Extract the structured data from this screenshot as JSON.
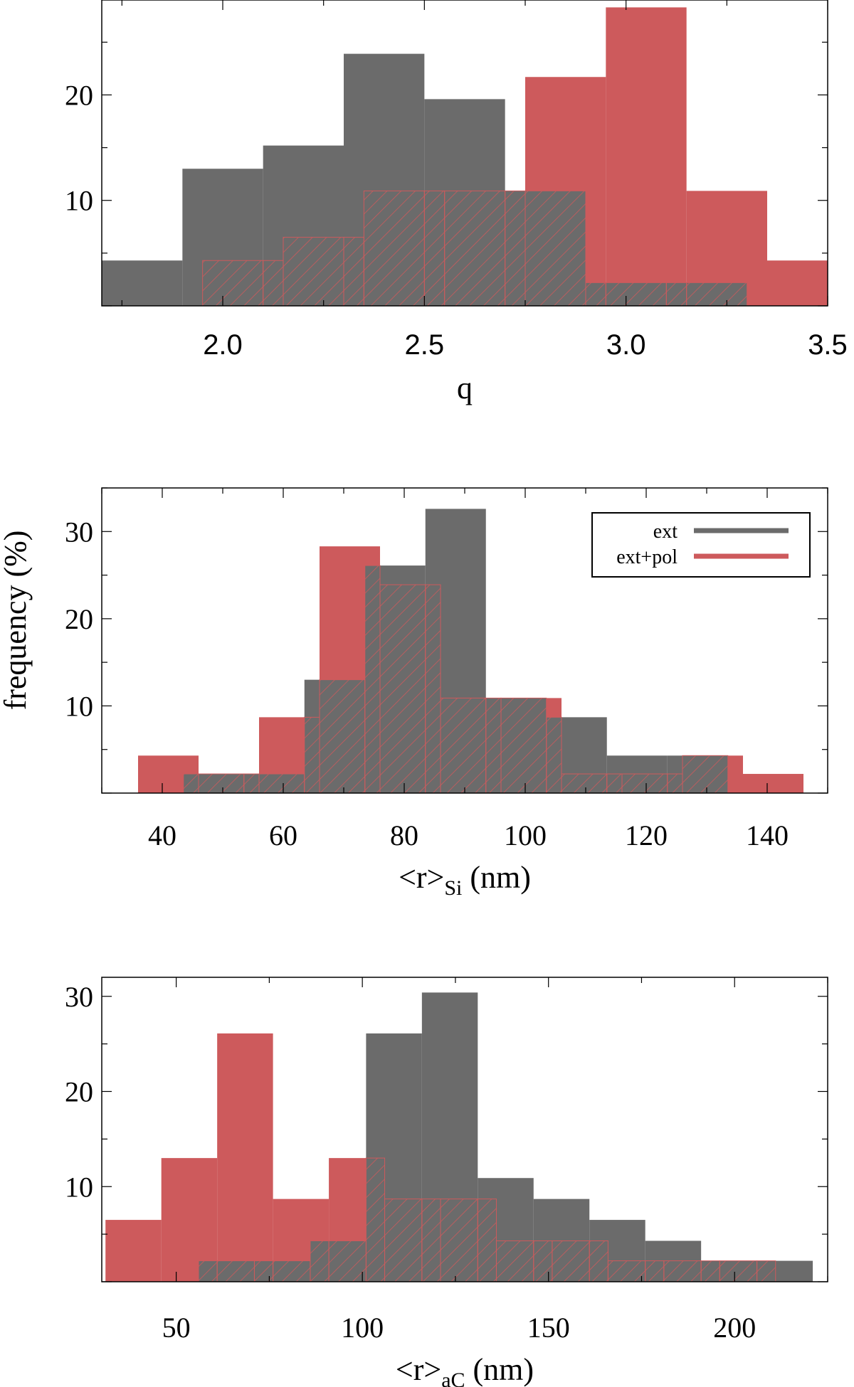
{
  "colors": {
    "ext": "#6b6b6b",
    "ext_pol": "#cd5a5c",
    "hatch": "#cd5a5c",
    "frame": "#000000"
  },
  "ylabel": "frequency (%)",
  "legend": {
    "ext": "ext",
    "ext_pol": "ext+pol"
  },
  "chart_data": [
    {
      "type": "bar",
      "title": "",
      "xlabel": "q",
      "xlim": [
        1.7,
        3.5
      ],
      "ylim": [
        0,
        29
      ],
      "xticks": [
        2.0,
        2.5,
        3.0,
        3.5
      ],
      "xtick_labels": [
        "2.0",
        "2.5",
        "3.0",
        "3.5"
      ],
      "yticks": [
        10,
        20
      ],
      "ytick_labels": [
        "10",
        "20"
      ],
      "series": [
        {
          "name": "ext",
          "edges": [
            1.7,
            1.9,
            2.1,
            2.3,
            2.5,
            2.7,
            2.9,
            3.1,
            3.3
          ],
          "values": [
            4.3,
            13.0,
            15.2,
            23.9,
            19.6,
            10.9,
            2.2,
            2.2
          ]
        },
        {
          "name": "ext+pol",
          "edges": [
            1.95,
            2.15,
            2.35,
            2.55,
            2.75,
            2.95,
            3.15,
            3.35,
            3.55
          ],
          "values": [
            4.3,
            6.5,
            10.9,
            10.9,
            21.7,
            28.3,
            10.9,
            4.3
          ]
        }
      ]
    },
    {
      "type": "bar",
      "title": "",
      "xlabel": "<r>",
      "xlabel_sub": "Si",
      "xlabel_unit": "(nm)",
      "xlim": [
        30,
        150
      ],
      "ylim": [
        0,
        35
      ],
      "xticks": [
        40,
        60,
        80,
        100,
        120,
        140
      ],
      "xtick_labels": [
        "40",
        "60",
        "80",
        "100",
        "120",
        "140"
      ],
      "yticks": [
        10,
        20,
        30
      ],
      "ytick_labels": [
        "10",
        "20",
        "30"
      ],
      "series": [
        {
          "name": "ext",
          "edges": [
            43.5,
            53.5,
            63.5,
            73.5,
            83.5,
            93.5,
            103.5,
            113.5,
            123.5,
            133.5
          ],
          "values": [
            2.2,
            2.2,
            13.0,
            26.1,
            32.6,
            10.9,
            8.7,
            4.3,
            4.3
          ]
        },
        {
          "name": "ext+pol",
          "edges": [
            36,
            46,
            56,
            66,
            76,
            86,
            96,
            106,
            116,
            126,
            136,
            146
          ],
          "values": [
            4.3,
            2.2,
            8.7,
            28.3,
            23.9,
            10.9,
            10.9,
            2.2,
            2.2,
            4.3,
            2.2
          ]
        }
      ]
    },
    {
      "type": "bar",
      "title": "",
      "xlabel": "<r>",
      "xlabel_sub": "aC",
      "xlabel_unit": "(nm)",
      "xlim": [
        30,
        225
      ],
      "ylim": [
        0,
        32
      ],
      "xticks": [
        50,
        100,
        150,
        200
      ],
      "xtick_labels": [
        "50",
        "100",
        "150",
        "200"
      ],
      "yticks": [
        10,
        20,
        30
      ],
      "ytick_labels": [
        "10",
        "20",
        "30"
      ],
      "series": [
        {
          "name": "ext",
          "edges": [
            56,
            71,
            86,
            101,
            116,
            131,
            146,
            161,
            176,
            191,
            206,
            221
          ],
          "values": [
            2.2,
            2.2,
            4.3,
            26.1,
            30.4,
            10.9,
            8.7,
            6.5,
            4.3,
            2.2,
            2.2
          ]
        },
        {
          "name": "ext+pol",
          "edges": [
            31,
            46,
            61,
            76,
            91,
            106,
            121,
            136,
            151,
            166,
            181,
            196,
            211
          ],
          "values": [
            6.5,
            13.0,
            26.1,
            8.7,
            13.0,
            8.7,
            8.7,
            4.3,
            4.3,
            2.2,
            2.2,
            2.2
          ]
        }
      ]
    }
  ]
}
